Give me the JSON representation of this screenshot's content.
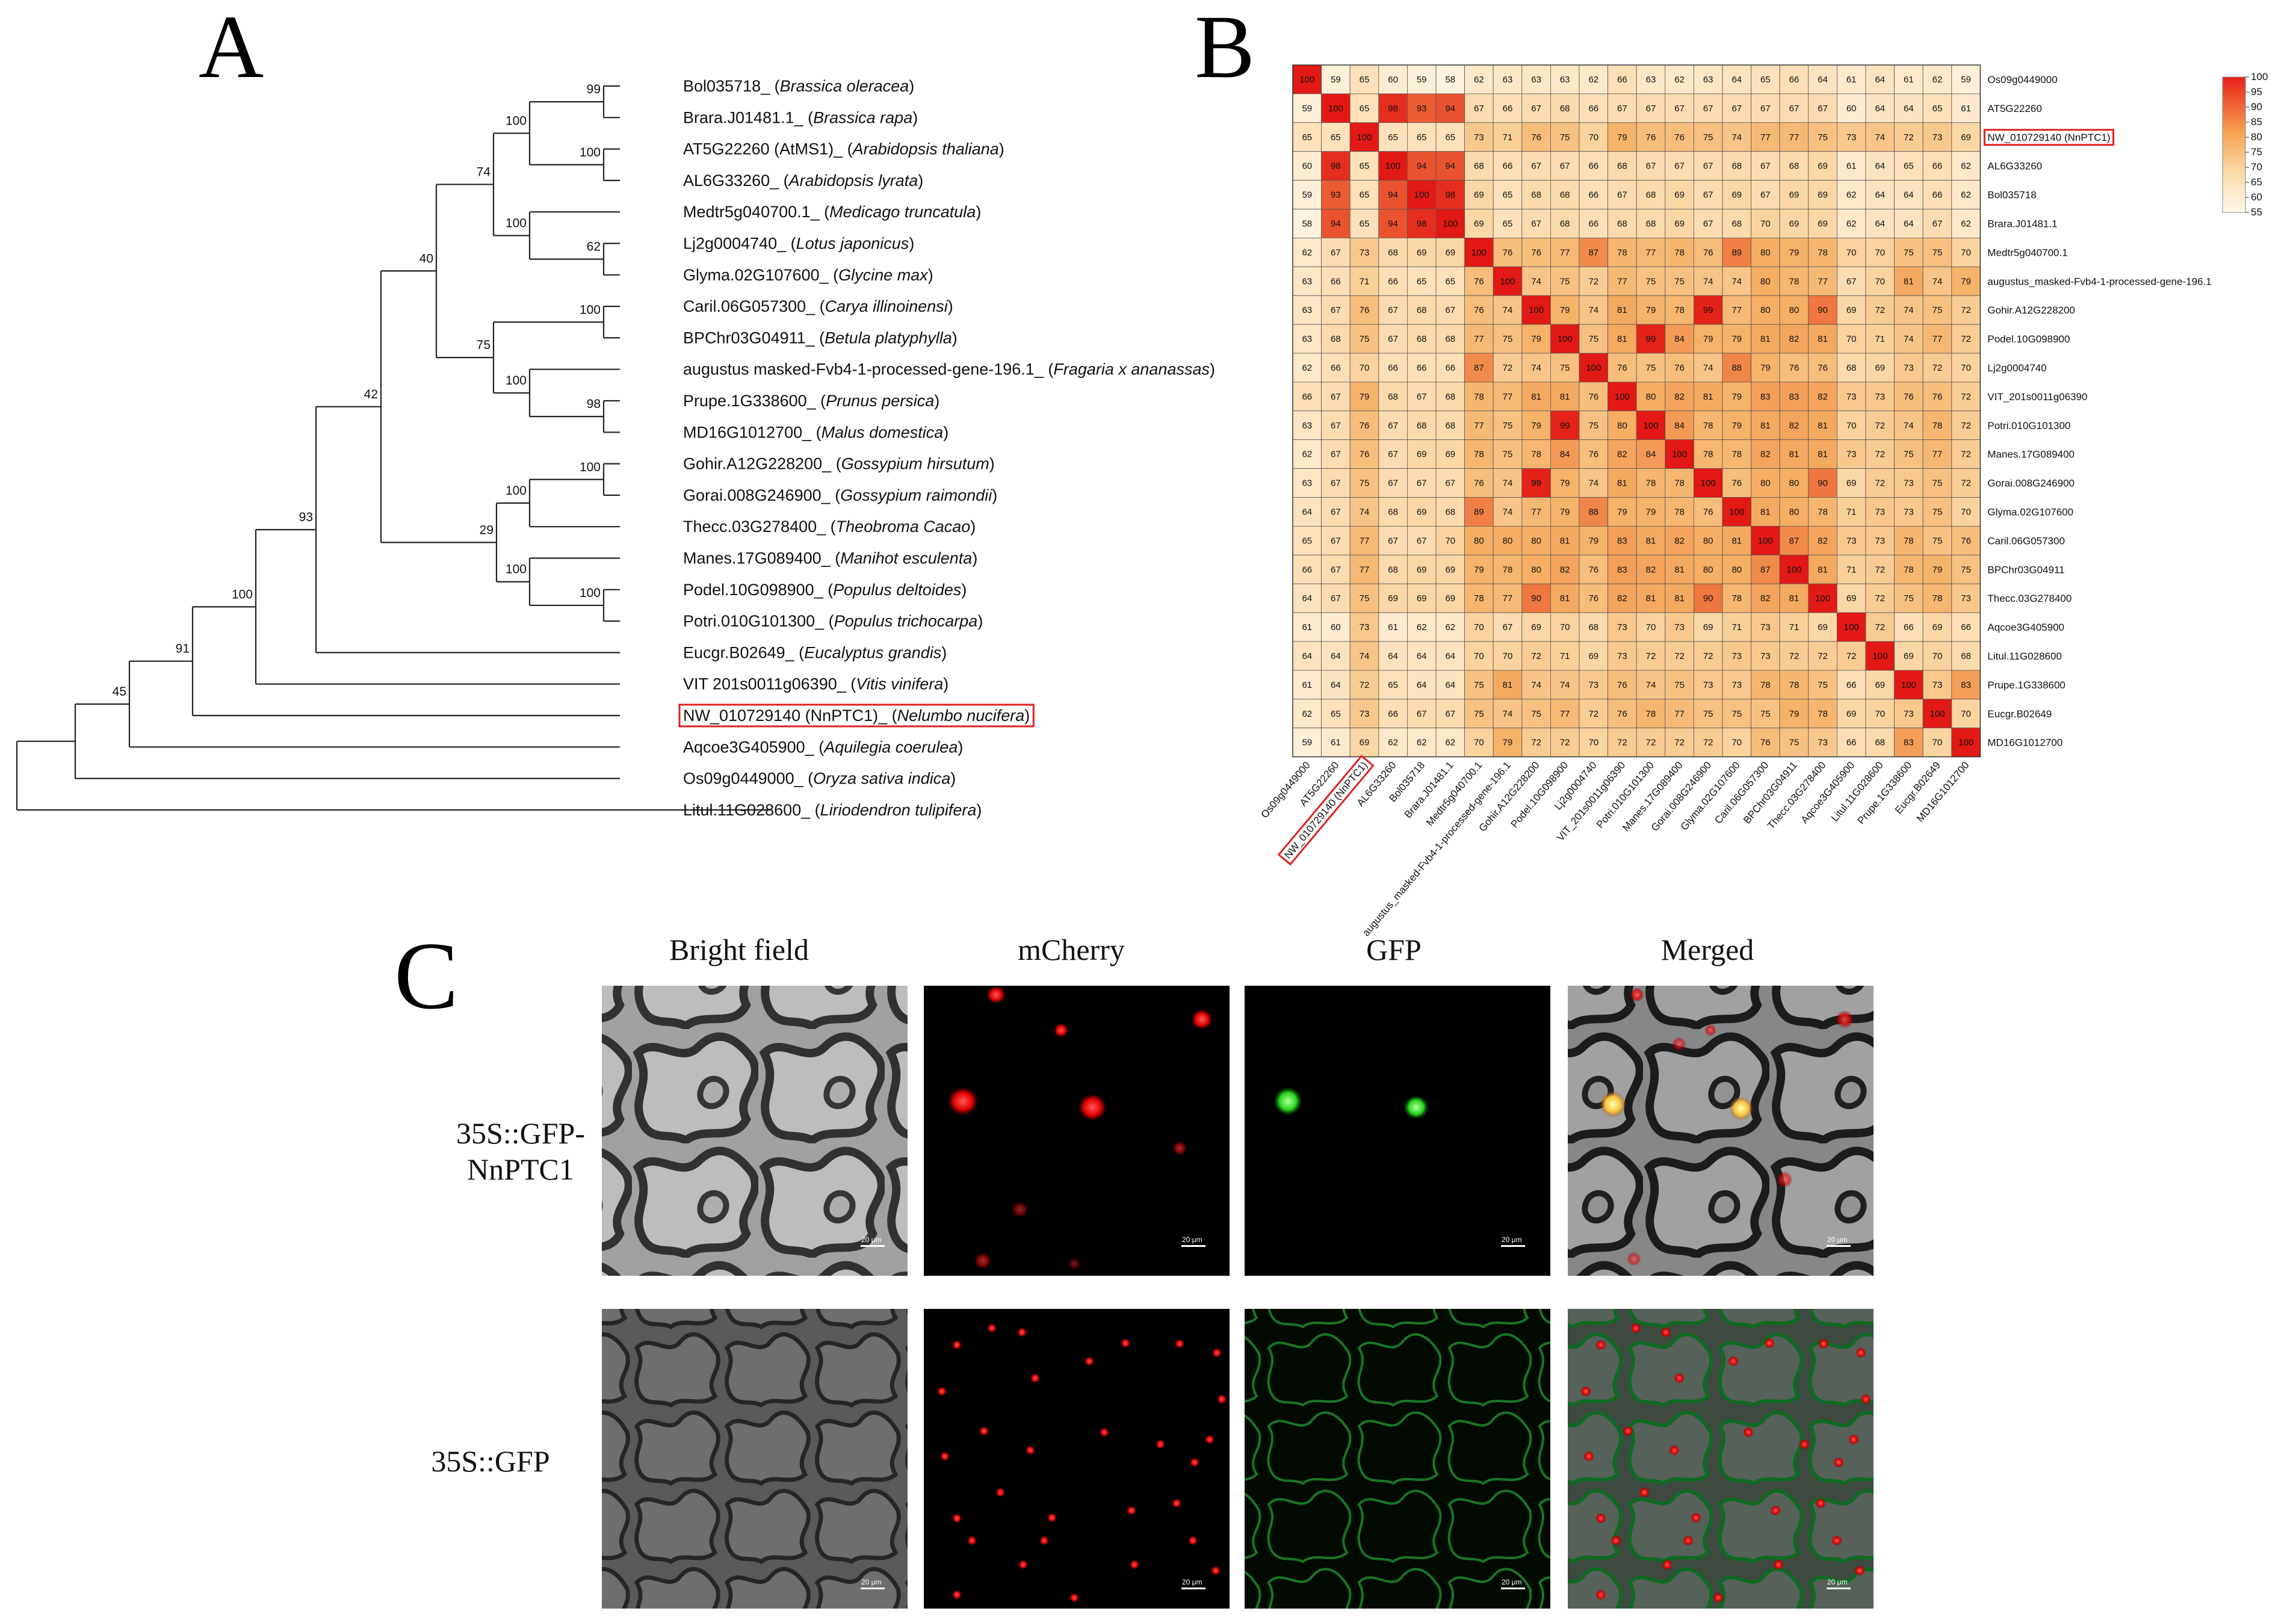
{
  "panels": {
    "a": "A",
    "b": "B",
    "c": "C"
  },
  "tree": {
    "tips": [
      {
        "id": "Bol035718_",
        "species": "Brassica oleracea"
      },
      {
        "id": "Brara.J01481.1_",
        "species": "Brassica rapa"
      },
      {
        "id": "AT5G22260 (AtMS1)_",
        "species": "Arabidopsis thaliana"
      },
      {
        "id": "AL6G33260_",
        "species": "Arabidopsis lyrata"
      },
      {
        "id": "Medtr5g040700.1_",
        "species": "Medicago truncatula"
      },
      {
        "id": "Lj2g0004740_",
        "species": "Lotus japonicus"
      },
      {
        "id": "Glyma.02G107600_",
        "species": "Glycine max"
      },
      {
        "id": "Caril.06G057300_",
        "species": "Carya illinoinensi"
      },
      {
        "id": "BPChr03G04911_",
        "species": "Betula platyphylla"
      },
      {
        "id": "augustus masked-Fvb4-1-processed-gene-196.1_",
        "species": "Fragaria x ananassas"
      },
      {
        "id": "Prupe.1G338600_",
        "species": "Prunus persica"
      },
      {
        "id": "MD16G1012700_",
        "species": "Malus domestica"
      },
      {
        "id": "Gohir.A12G228200_",
        "species": "Gossypium hirsutum"
      },
      {
        "id": "Gorai.008G246900_",
        "species": "Gossypium raimondii"
      },
      {
        "id": "Thecc.03G278400_",
        "species": "Theobroma Cacao"
      },
      {
        "id": "Manes.17G089400_",
        "species": "Manihot esculenta"
      },
      {
        "id": "Podel.10G098900_",
        "species": "Populus deltoides"
      },
      {
        "id": "Potri.010G101300_",
        "species": "Populus trichocarpa"
      },
      {
        "id": "Eucgr.B02649_",
        "species": "Eucalyptus grandis"
      },
      {
        "id": "VIT 201s0011g06390_",
        "species": "Vitis vinifera"
      },
      {
        "id": "NW_010729140 (NnPTC1)_",
        "species": "Nelumbo nucifera"
      },
      {
        "id": "Aqcoe3G405900_",
        "species": "Aquilegia coerulea"
      },
      {
        "id": "Os09g0449000_",
        "species": "Oryza sativa indica"
      },
      {
        "id": "Litul.11G028600_",
        "species": "Liriodendron tulipifera"
      }
    ],
    "highlight_tip": "NW_010729140 (NnPTC1)_",
    "bootstraps": [
      "99",
      "100",
      "100",
      "74",
      "100",
      "62",
      "40",
      "100",
      "75",
      "100",
      "98",
      "42",
      "100",
      "100",
      "29",
      "100",
      "100",
      "93",
      "100",
      "91",
      "45"
    ]
  },
  "heatmap": {
    "labels": [
      "Os09g0449000",
      "AT5G22260",
      "NW_010729140 (NnPTC1)",
      "AL6G33260",
      "Bol035718",
      "Brara.J01481.1",
      "Medtr5g040700.1",
      "augustus_masked-Fvb4-1-processed-gene-196.1",
      "Gohir.A12G228200",
      "Podel.10G098900",
      "Lj2g0004740",
      "VIT_201s0011g06390",
      "Potri.010G101300",
      "Manes.17G089400",
      "Gorai.008G246900",
      "Glyma.02G107600",
      "Caril.06G057300",
      "BPChr03G04911",
      "Thecc.03G278400",
      "Aqcoe3G405900",
      "Litul.11G028600",
      "Prupe.1G338600",
      "Eucgr.B02649",
      "MD16G1012700"
    ],
    "highlight_label": "NW_010729140 (NnPTC1)",
    "legend_ticks": [
      "100",
      "95",
      "90",
      "85",
      "80",
      "75",
      "70",
      "65",
      "60",
      "55"
    ]
  },
  "chart_data": {
    "type": "heatmap",
    "title": "",
    "range": [
      55,
      100
    ],
    "rows": [
      "Os09g0449000",
      "AT5G22260",
      "NW_010729140 (NnPTC1)",
      "AL6G33260",
      "Bol035718",
      "Brara.J01481.1",
      "Medtr5g040700.1",
      "augustus_masked-Fvb4-1-processed-gene-196.1",
      "Gohir.A12G228200",
      "Podel.10G098900",
      "Lj2g0004740",
      "VIT_201s0011g06390",
      "Potri.010G101300",
      "Manes.17G089400",
      "Gorai.008G246900",
      "Glyma.02G107600",
      "Caril.06G057300",
      "BPChr03G04911",
      "Thecc.03G278400",
      "Aqcoe3G405900",
      "Litul.11G028600",
      "Prupe.1G338600",
      "Eucgr.B02649",
      "MD16G1012700"
    ],
    "matrix": [
      [
        100,
        59,
        65,
        60,
        59,
        58,
        62,
        63,
        63,
        63,
        62,
        66,
        63,
        62,
        63,
        64,
        65,
        66,
        64,
        61,
        64,
        61,
        62,
        59
      ],
      [
        59,
        100,
        65,
        98,
        93,
        94,
        67,
        66,
        67,
        68,
        66,
        67,
        67,
        67,
        67,
        67,
        67,
        67,
        67,
        60,
        64,
        64,
        65,
        61
      ],
      [
        65,
        65,
        100,
        65,
        65,
        65,
        73,
        71,
        76,
        75,
        70,
        79,
        76,
        76,
        75,
        74,
        77,
        77,
        75,
        73,
        74,
        72,
        73,
        69
      ],
      [
        60,
        98,
        65,
        100,
        94,
        94,
        68,
        66,
        67,
        67,
        66,
        68,
        67,
        67,
        67,
        68,
        67,
        68,
        69,
        61,
        64,
        65,
        66,
        62
      ],
      [
        59,
        93,
        65,
        94,
        100,
        98,
        69,
        65,
        68,
        68,
        66,
        67,
        68,
        69,
        67,
        69,
        67,
        69,
        69,
        62,
        64,
        64,
        66,
        62
      ],
      [
        58,
        94,
        65,
        94,
        98,
        100,
        69,
        65,
        67,
        68,
        66,
        68,
        68,
        69,
        67,
        68,
        70,
        69,
        69,
        62,
        64,
        64,
        67,
        62
      ],
      [
        62,
        67,
        73,
        68,
        69,
        69,
        100,
        76,
        76,
        77,
        87,
        78,
        77,
        78,
        76,
        89,
        80,
        79,
        78,
        70,
        70,
        75,
        75,
        70
      ],
      [
        63,
        66,
        71,
        66,
        65,
        65,
        76,
        100,
        74,
        75,
        72,
        77,
        75,
        75,
        74,
        74,
        80,
        78,
        77,
        67,
        70,
        81,
        74,
        79
      ],
      [
        63,
        67,
        76,
        67,
        68,
        67,
        76,
        74,
        100,
        79,
        74,
        81,
        79,
        78,
        99,
        77,
        80,
        80,
        90,
        69,
        72,
        74,
        75,
        72
      ],
      [
        63,
        68,
        75,
        67,
        68,
        68,
        77,
        75,
        79,
        100,
        75,
        81,
        99,
        84,
        79,
        79,
        81,
        82,
        81,
        70,
        71,
        74,
        77,
        72
      ],
      [
        62,
        66,
        70,
        66,
        66,
        66,
        87,
        72,
        74,
        75,
        100,
        76,
        75,
        76,
        74,
        88,
        79,
        76,
        76,
        68,
        69,
        73,
        72,
        70
      ],
      [
        66,
        67,
        79,
        68,
        67,
        68,
        78,
        77,
        81,
        81,
        76,
        100,
        80,
        82,
        81,
        79,
        83,
        83,
        82,
        73,
        73,
        76,
        76,
        72
      ],
      [
        63,
        67,
        76,
        67,
        68,
        68,
        77,
        75,
        79,
        99,
        75,
        80,
        100,
        84,
        78,
        79,
        81,
        82,
        81,
        70,
        72,
        74,
        78,
        72
      ],
      [
        62,
        67,
        76,
        67,
        69,
        69,
        78,
        75,
        78,
        84,
        76,
        82,
        84,
        100,
        78,
        78,
        82,
        81,
        81,
        73,
        72,
        75,
        77,
        72
      ],
      [
        63,
        67,
        75,
        67,
        67,
        67,
        76,
        74,
        99,
        79,
        74,
        81,
        78,
        78,
        100,
        76,
        80,
        80,
        90,
        69,
        72,
        73,
        75,
        72
      ],
      [
        64,
        67,
        74,
        68,
        69,
        68,
        89,
        74,
        77,
        79,
        88,
        79,
        79,
        78,
        76,
        100,
        81,
        80,
        78,
        71,
        73,
        73,
        75,
        70
      ],
      [
        65,
        67,
        77,
        67,
        67,
        70,
        80,
        80,
        80,
        81,
        79,
        83,
        81,
        82,
        80,
        81,
        100,
        87,
        82,
        73,
        73,
        78,
        75,
        76
      ],
      [
        66,
        67,
        77,
        68,
        69,
        69,
        79,
        78,
        80,
        82,
        76,
        83,
        82,
        81,
        80,
        80,
        87,
        100,
        81,
        71,
        72,
        78,
        79,
        75
      ],
      [
        64,
        67,
        75,
        69,
        69,
        69,
        78,
        77,
        90,
        81,
        76,
        82,
        81,
        81,
        90,
        78,
        82,
        81,
        100,
        69,
        72,
        75,
        78,
        73
      ],
      [
        61,
        60,
        73,
        61,
        62,
        62,
        70,
        67,
        69,
        70,
        68,
        73,
        70,
        73,
        69,
        71,
        73,
        71,
        69,
        100,
        72,
        66,
        69,
        66
      ],
      [
        64,
        64,
        74,
        64,
        64,
        64,
        70,
        70,
        72,
        71,
        69,
        73,
        72,
        72,
        72,
        73,
        73,
        72,
        72,
        72,
        100,
        69,
        70,
        68
      ],
      [
        61,
        64,
        72,
        65,
        64,
        64,
        75,
        81,
        74,
        74,
        73,
        76,
        74,
        75,
        73,
        73,
        78,
        78,
        75,
        66,
        69,
        100,
        73,
        83
      ],
      [
        62,
        65,
        73,
        66,
        67,
        67,
        75,
        74,
        75,
        77,
        72,
        76,
        78,
        77,
        75,
        75,
        75,
        79,
        78,
        69,
        70,
        73,
        100,
        70
      ],
      [
        59,
        61,
        69,
        62,
        62,
        62,
        70,
        79,
        72,
        72,
        70,
        72,
        72,
        72,
        72,
        70,
        76,
        75,
        73,
        66,
        68,
        83,
        70,
        100
      ]
    ]
  },
  "microscopy": {
    "columns": [
      "Bright field",
      "mCherry",
      "GFP",
      "Merged"
    ],
    "rows": [
      {
        "label_line1": "35S::GFP-",
        "label_line2": "NnPTC1"
      },
      {
        "label_line1": "35S::GFP",
        "label_line2": ""
      }
    ],
    "scale_bar": "20 μm"
  }
}
